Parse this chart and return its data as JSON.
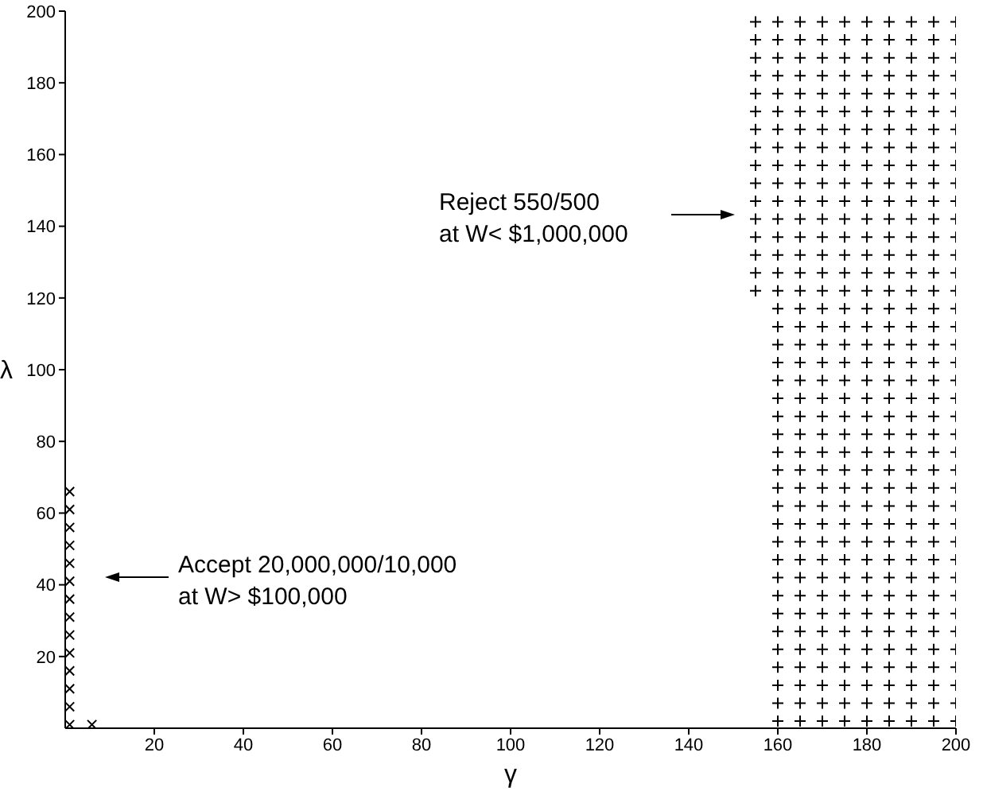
{
  "chart_data": {
    "type": "scatter",
    "xlabel": "γ",
    "ylabel": "λ",
    "xlim": [
      0,
      200
    ],
    "ylim": [
      0,
      200
    ],
    "xticks": [
      20,
      40,
      60,
      80,
      100,
      120,
      140,
      160,
      180,
      200
    ],
    "yticks": [
      20,
      40,
      60,
      80,
      100,
      120,
      140,
      160,
      180,
      200
    ],
    "grid": false,
    "legend": false,
    "annotations": [
      "Reject 550/500\nat W< $1,000,000",
      "Accept 20,000,000/10,000\nat W> $100,000"
    ],
    "series": [
      {
        "color": "#000000",
        "marker": "cross",
        "x": [
          1,
          1,
          1,
          1,
          1,
          1,
          1,
          1,
          1,
          1,
          1,
          1,
          1,
          1,
          6
        ],
        "values": [
          1,
          6,
          11,
          16,
          21,
          26,
          31,
          36,
          41,
          46,
          51,
          56,
          61,
          66,
          1
        ]
      },
      {
        "color": "#000000",
        "marker": "plus",
        "x": [
          155,
          160,
          165,
          170,
          175,
          180,
          185,
          190,
          195,
          200
        ],
        "values": [
          197,
          197,
          197,
          197,
          197,
          197,
          197,
          197,
          197,
          197
        ]
      },
      {
        "color": "#000000",
        "marker": "plus",
        "x": [
          155,
          160,
          165,
          170,
          175,
          180,
          185,
          190,
          195,
          200
        ],
        "values": [
          192,
          192,
          192,
          192,
          192,
          192,
          192,
          192,
          192,
          192
        ]
      },
      {
        "color": "#000000",
        "marker": "plus",
        "x": [
          155,
          160,
          165,
          170,
          175,
          180,
          185,
          190,
          195,
          200
        ],
        "values": [
          187,
          187,
          187,
          187,
          187,
          187,
          187,
          187,
          187,
          187
        ]
      },
      {
        "color": "#000000",
        "marker": "plus",
        "x": [
          155,
          160,
          165,
          170,
          175,
          180,
          185,
          190,
          195,
          200
        ],
        "values": [
          182,
          182,
          182,
          182,
          182,
          182,
          182,
          182,
          182,
          182
        ]
      },
      {
        "color": "#000000",
        "marker": "plus",
        "x": [
          155,
          160,
          165,
          170,
          175,
          180,
          185,
          190,
          195,
          200
        ],
        "values": [
          177,
          177,
          177,
          177,
          177,
          177,
          177,
          177,
          177,
          177
        ]
      },
      {
        "color": "#000000",
        "marker": "plus",
        "x": [
          155,
          160,
          165,
          170,
          175,
          180,
          185,
          190,
          195,
          200
        ],
        "values": [
          172,
          172,
          172,
          172,
          172,
          172,
          172,
          172,
          172,
          172
        ]
      },
      {
        "color": "#000000",
        "marker": "plus",
        "x": [
          155,
          160,
          165,
          170,
          175,
          180,
          185,
          190,
          195,
          200
        ],
        "values": [
          167,
          167,
          167,
          167,
          167,
          167,
          167,
          167,
          167,
          167
        ]
      },
      {
        "color": "#000000",
        "marker": "plus",
        "x": [
          155,
          160,
          165,
          170,
          175,
          180,
          185,
          190,
          195,
          200
        ],
        "values": [
          162,
          162,
          162,
          162,
          162,
          162,
          162,
          162,
          162,
          162
        ]
      },
      {
        "color": "#000000",
        "marker": "plus",
        "x": [
          155,
          160,
          165,
          170,
          175,
          180,
          185,
          190,
          195,
          200
        ],
        "values": [
          157,
          157,
          157,
          157,
          157,
          157,
          157,
          157,
          157,
          157
        ]
      },
      {
        "color": "#000000",
        "marker": "plus",
        "x": [
          155,
          160,
          165,
          170,
          175,
          180,
          185,
          190,
          195,
          200
        ],
        "values": [
          152,
          152,
          152,
          152,
          152,
          152,
          152,
          152,
          152,
          152
        ]
      },
      {
        "color": "#000000",
        "marker": "plus",
        "x": [
          155,
          160,
          165,
          170,
          175,
          180,
          185,
          190,
          195,
          200
        ],
        "values": [
          147,
          147,
          147,
          147,
          147,
          147,
          147,
          147,
          147,
          147
        ]
      },
      {
        "color": "#000000",
        "marker": "plus",
        "x": [
          155,
          160,
          165,
          170,
          175,
          180,
          185,
          190,
          195,
          200
        ],
        "values": [
          142,
          142,
          142,
          142,
          142,
          142,
          142,
          142,
          142,
          142
        ]
      },
      {
        "color": "#000000",
        "marker": "plus",
        "x": [
          155,
          160,
          165,
          170,
          175,
          180,
          185,
          190,
          195,
          200
        ],
        "values": [
          137,
          137,
          137,
          137,
          137,
          137,
          137,
          137,
          137,
          137
        ]
      },
      {
        "color": "#000000",
        "marker": "plus",
        "x": [
          155,
          160,
          165,
          170,
          175,
          180,
          185,
          190,
          195,
          200
        ],
        "values": [
          132,
          132,
          132,
          132,
          132,
          132,
          132,
          132,
          132,
          132
        ]
      },
      {
        "color": "#000000",
        "marker": "plus",
        "x": [
          155,
          160,
          165,
          170,
          175,
          180,
          185,
          190,
          195,
          200
        ],
        "values": [
          127,
          127,
          127,
          127,
          127,
          127,
          127,
          127,
          127,
          127
        ]
      },
      {
        "color": "#000000",
        "marker": "plus",
        "x": [
          155,
          160,
          165,
          170,
          175,
          180,
          185,
          190,
          195,
          200
        ],
        "values": [
          122,
          122,
          122,
          122,
          122,
          122,
          122,
          122,
          122,
          122
        ]
      },
      {
        "color": "#000000",
        "marker": "plus",
        "x": [
          160,
          165,
          170,
          175,
          180,
          185,
          190,
          195,
          200
        ],
        "values": [
          117,
          117,
          117,
          117,
          117,
          117,
          117,
          117,
          117
        ]
      },
      {
        "color": "#000000",
        "marker": "plus",
        "x": [
          160,
          165,
          170,
          175,
          180,
          185,
          190,
          195,
          200
        ],
        "values": [
          112,
          112,
          112,
          112,
          112,
          112,
          112,
          112,
          112
        ]
      },
      {
        "color": "#000000",
        "marker": "plus",
        "x": [
          160,
          165,
          170,
          175,
          180,
          185,
          190,
          195,
          200
        ],
        "values": [
          107,
          107,
          107,
          107,
          107,
          107,
          107,
          107,
          107
        ]
      },
      {
        "color": "#000000",
        "marker": "plus",
        "x": [
          160,
          165,
          170,
          175,
          180,
          185,
          190,
          195,
          200
        ],
        "values": [
          102,
          102,
          102,
          102,
          102,
          102,
          102,
          102,
          102
        ]
      },
      {
        "color": "#000000",
        "marker": "plus",
        "x": [
          160,
          165,
          170,
          175,
          180,
          185,
          190,
          195,
          200
        ],
        "values": [
          97,
          97,
          97,
          97,
          97,
          97,
          97,
          97,
          97
        ]
      },
      {
        "color": "#000000",
        "marker": "plus",
        "x": [
          160,
          165,
          170,
          175,
          180,
          185,
          190,
          195,
          200
        ],
        "values": [
          92,
          92,
          92,
          92,
          92,
          92,
          92,
          92,
          92
        ]
      },
      {
        "color": "#000000",
        "marker": "plus",
        "x": [
          160,
          165,
          170,
          175,
          180,
          185,
          190,
          195,
          200
        ],
        "values": [
          87,
          87,
          87,
          87,
          87,
          87,
          87,
          87,
          87
        ]
      },
      {
        "color": "#000000",
        "marker": "plus",
        "x": [
          160,
          165,
          170,
          175,
          180,
          185,
          190,
          195,
          200
        ],
        "values": [
          82,
          82,
          82,
          82,
          82,
          82,
          82,
          82,
          82
        ]
      },
      {
        "color": "#000000",
        "marker": "plus",
        "x": [
          160,
          165,
          170,
          175,
          180,
          185,
          190,
          195,
          200
        ],
        "values": [
          77,
          77,
          77,
          77,
          77,
          77,
          77,
          77,
          77
        ]
      },
      {
        "color": "#000000",
        "marker": "plus",
        "x": [
          160,
          165,
          170,
          175,
          180,
          185,
          190,
          195,
          200
        ],
        "values": [
          72,
          72,
          72,
          72,
          72,
          72,
          72,
          72,
          72
        ]
      },
      {
        "color": "#000000",
        "marker": "plus",
        "x": [
          160,
          165,
          170,
          175,
          180,
          185,
          190,
          195,
          200
        ],
        "values": [
          67,
          67,
          67,
          67,
          67,
          67,
          67,
          67,
          67
        ]
      },
      {
        "color": "#000000",
        "marker": "plus",
        "x": [
          160,
          165,
          170,
          175,
          180,
          185,
          190,
          195,
          200
        ],
        "values": [
          62,
          62,
          62,
          62,
          62,
          62,
          62,
          62,
          62
        ]
      },
      {
        "color": "#000000",
        "marker": "plus",
        "x": [
          160,
          165,
          170,
          175,
          180,
          185,
          190,
          195,
          200
        ],
        "values": [
          57,
          57,
          57,
          57,
          57,
          57,
          57,
          57,
          57
        ]
      },
      {
        "color": "#000000",
        "marker": "plus",
        "x": [
          160,
          165,
          170,
          175,
          180,
          185,
          190,
          195,
          200
        ],
        "values": [
          52,
          52,
          52,
          52,
          52,
          52,
          52,
          52,
          52
        ]
      },
      {
        "color": "#000000",
        "marker": "plus",
        "x": [
          160,
          165,
          170,
          175,
          180,
          185,
          190,
          195,
          200
        ],
        "values": [
          47,
          47,
          47,
          47,
          47,
          47,
          47,
          47,
          47
        ]
      },
      {
        "color": "#000000",
        "marker": "plus",
        "x": [
          160,
          165,
          170,
          175,
          180,
          185,
          190,
          195,
          200
        ],
        "values": [
          42,
          42,
          42,
          42,
          42,
          42,
          42,
          42,
          42
        ]
      },
      {
        "color": "#000000",
        "marker": "plus",
        "x": [
          160,
          165,
          170,
          175,
          180,
          185,
          190,
          195,
          200
        ],
        "values": [
          37,
          37,
          37,
          37,
          37,
          37,
          37,
          37,
          37
        ]
      },
      {
        "color": "#000000",
        "marker": "plus",
        "x": [
          160,
          165,
          170,
          175,
          180,
          185,
          190,
          195,
          200
        ],
        "values": [
          32,
          32,
          32,
          32,
          32,
          32,
          32,
          32,
          32
        ]
      },
      {
        "color": "#000000",
        "marker": "plus",
        "x": [
          160,
          165,
          170,
          175,
          180,
          185,
          190,
          195,
          200
        ],
        "values": [
          27,
          27,
          27,
          27,
          27,
          27,
          27,
          27,
          27
        ]
      },
      {
        "color": "#000000",
        "marker": "plus",
        "x": [
          160,
          165,
          170,
          175,
          180,
          185,
          190,
          195,
          200
        ],
        "values": [
          22,
          22,
          22,
          22,
          22,
          22,
          22,
          22,
          22
        ]
      },
      {
        "color": "#000000",
        "marker": "plus",
        "x": [
          160,
          165,
          170,
          175,
          180,
          185,
          190,
          195,
          200
        ],
        "values": [
          17,
          17,
          17,
          17,
          17,
          17,
          17,
          17,
          17
        ]
      },
      {
        "color": "#000000",
        "marker": "plus",
        "x": [
          160,
          165,
          170,
          175,
          180,
          185,
          190,
          195,
          200
        ],
        "values": [
          12,
          12,
          12,
          12,
          12,
          12,
          12,
          12,
          12
        ]
      },
      {
        "color": "#000000",
        "marker": "plus",
        "x": [
          160,
          165,
          170,
          175,
          180,
          185,
          190,
          195,
          200
        ],
        "values": [
          7,
          7,
          7,
          7,
          7,
          7,
          7,
          7,
          7
        ]
      },
      {
        "color": "#000000",
        "marker": "plus",
        "x": [
          160,
          165,
          170,
          175,
          180,
          185,
          190,
          195,
          200
        ],
        "values": [
          2,
          2,
          2,
          2,
          2,
          2,
          2,
          2,
          2
        ]
      }
    ]
  }
}
